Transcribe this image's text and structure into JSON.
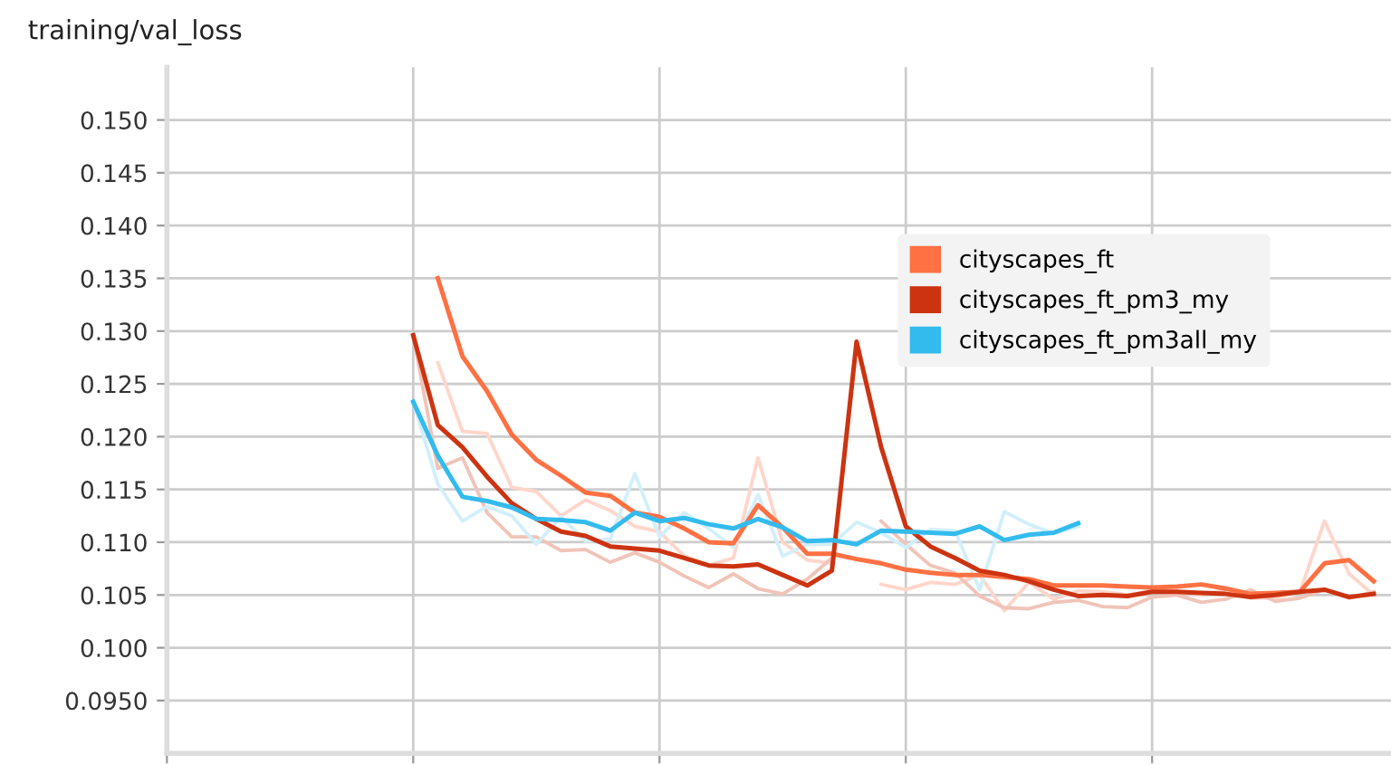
{
  "chart_data": {
    "type": "line",
    "title": "training/val_loss",
    "categories": [
      null,
      null,
      null,
      null,
      null,
      null,
      null,
      null,
      null,
      null,
      null,
      null,
      null,
      null,
      null,
      null,
      null,
      null,
      null,
      null,
      null,
      null,
      null,
      null,
      null,
      null,
      null,
      null,
      null,
      null,
      null,
      null,
      null,
      null,
      null,
      null,
      null,
      null,
      null,
      null,
      null,
      null,
      null,
      null,
      null,
      null,
      null,
      null,
      null,
      null
    ],
    "ylim": [
      0.09,
      0.155
    ],
    "yticks": [
      {
        "value": 0.095,
        "label": "0.0950"
      },
      {
        "value": 0.1,
        "label": "0.100"
      },
      {
        "value": 0.105,
        "label": "0.105"
      },
      {
        "value": 0.11,
        "label": "0.110"
      },
      {
        "value": 0.115,
        "label": "0.115"
      },
      {
        "value": 0.12,
        "label": "0.120"
      },
      {
        "value": 0.125,
        "label": "0.125"
      },
      {
        "value": 0.13,
        "label": "0.130"
      },
      {
        "value": 0.135,
        "label": "0.135"
      },
      {
        "value": 0.14,
        "label": "0.140"
      },
      {
        "value": 0.145,
        "label": "0.145"
      },
      {
        "value": 0.15,
        "label": "0.150"
      }
    ],
    "grid": true,
    "legend": "right",
    "line_style": "solid",
    "series": [
      {
        "color": "#ffd6cb",
        "values": [
          null,
          null,
          null,
          null,
          null,
          null,
          null,
          null,
          null,
          null,
          null,
          0.127,
          0.1205,
          0.1203,
          0.1152,
          0.1148,
          0.1125,
          0.114,
          0.113,
          0.1115,
          0.111,
          0.1087,
          0.1078,
          0.1085,
          0.118,
          0.11,
          0.1083,
          0.108,
          null,
          0.106,
          0.1055,
          0.1062,
          0.106,
          0.1069,
          0.1035,
          0.1062,
          0.1046,
          0.1054,
          0.1053,
          0.105,
          0.1054,
          0.1053,
          0.105,
          0.1055,
          0.1047,
          0.1047,
          0.1053,
          0.112,
          0.107,
          0.105
        ]
      },
      {
        "color": "#f0c4b8",
        "values": [
          null,
          null,
          null,
          null,
          null,
          null,
          null,
          null,
          null,
          null,
          0.1296,
          0.117,
          0.118,
          0.1128,
          0.1105,
          0.1105,
          0.1092,
          0.1093,
          0.1081,
          0.109,
          0.1081,
          0.1068,
          0.1057,
          0.107,
          0.1056,
          0.1051,
          0.1065,
          0.1085,
          null,
          0.112,
          0.1098,
          0.1078,
          0.1071,
          0.1049,
          0.1038,
          0.1037,
          0.1043,
          0.1045,
          0.1039,
          0.1038,
          0.1048,
          0.105,
          0.1043,
          0.1046,
          0.1055,
          0.1044,
          0.1047,
          0.1055,
          0.1047,
          0.1053
        ]
      },
      {
        "color": "#d2effa",
        "values": [
          null,
          null,
          null,
          null,
          null,
          null,
          null,
          null,
          null,
          null,
          0.1233,
          0.1155,
          0.112,
          0.1134,
          0.1125,
          0.1098,
          0.1124,
          0.1101,
          0.1103,
          0.1165,
          0.1105,
          0.1128,
          0.1113,
          0.1095,
          0.1145,
          0.1087,
          0.1098,
          0.1098,
          0.1119,
          0.1109,
          0.1095,
          0.1112,
          0.1111,
          0.1055,
          0.1129,
          0.1117,
          0.1108,
          0.1115,
          null,
          null,
          null,
          null,
          null,
          null,
          null,
          null,
          null,
          null,
          null,
          null
        ]
      },
      {
        "name": "cityscapes_ft",
        "color": "#ff7043",
        "values": [
          null,
          null,
          null,
          null,
          null,
          null,
          null,
          null,
          null,
          null,
          null,
          0.135,
          0.1276,
          0.1243,
          0.1202,
          0.1178,
          0.1163,
          0.1147,
          0.1144,
          0.1128,
          0.1124,
          0.1113,
          0.11,
          0.1099,
          0.1135,
          0.1114,
          0.1089,
          0.1089,
          0.1084,
          0.108,
          0.1074,
          0.1071,
          0.1069,
          0.1069,
          0.1067,
          0.1065,
          0.1059,
          0.1059,
          0.1059,
          0.1058,
          0.1057,
          0.1058,
          0.106,
          0.1056,
          0.1051,
          0.1052,
          0.1053,
          0.108,
          0.1083,
          0.1063
        ]
      },
      {
        "name": "cityscapes_ft_pm3_my",
        "color": "#cc3311",
        "values": [
          null,
          null,
          null,
          null,
          null,
          null,
          null,
          null,
          null,
          null,
          0.1296,
          0.1211,
          0.119,
          0.1162,
          0.1137,
          0.1122,
          0.111,
          0.1106,
          0.1096,
          0.1094,
          0.1092,
          0.1085,
          0.1078,
          0.1077,
          0.1079,
          0.1069,
          0.1059,
          0.1073,
          0.129,
          0.119,
          0.1115,
          0.1096,
          0.1085,
          0.1073,
          0.1069,
          0.1063,
          0.1055,
          0.1049,
          0.105,
          0.1049,
          0.1053,
          0.1053,
          0.1052,
          0.1051,
          0.1048,
          0.105,
          0.1053,
          0.1055,
          0.1048,
          0.1051
        ]
      },
      {
        "name": "cityscapes_ft_pm3all_my",
        "color": "#33bbee",
        "values": [
          null,
          null,
          null,
          null,
          null,
          null,
          null,
          null,
          null,
          null,
          0.1233,
          0.1182,
          0.1143,
          0.1139,
          0.1133,
          0.1122,
          0.1121,
          0.1119,
          0.1111,
          0.1128,
          0.112,
          0.1123,
          0.1117,
          0.1113,
          0.1122,
          0.1114,
          0.1101,
          0.1102,
          0.1098,
          0.1111,
          0.111,
          0.1109,
          0.1108,
          0.1115,
          0.1102,
          0.1107,
          0.1109,
          0.1118,
          null,
          null,
          null,
          null,
          null,
          null,
          null,
          null,
          null,
          null,
          null,
          null
        ]
      }
    ]
  }
}
